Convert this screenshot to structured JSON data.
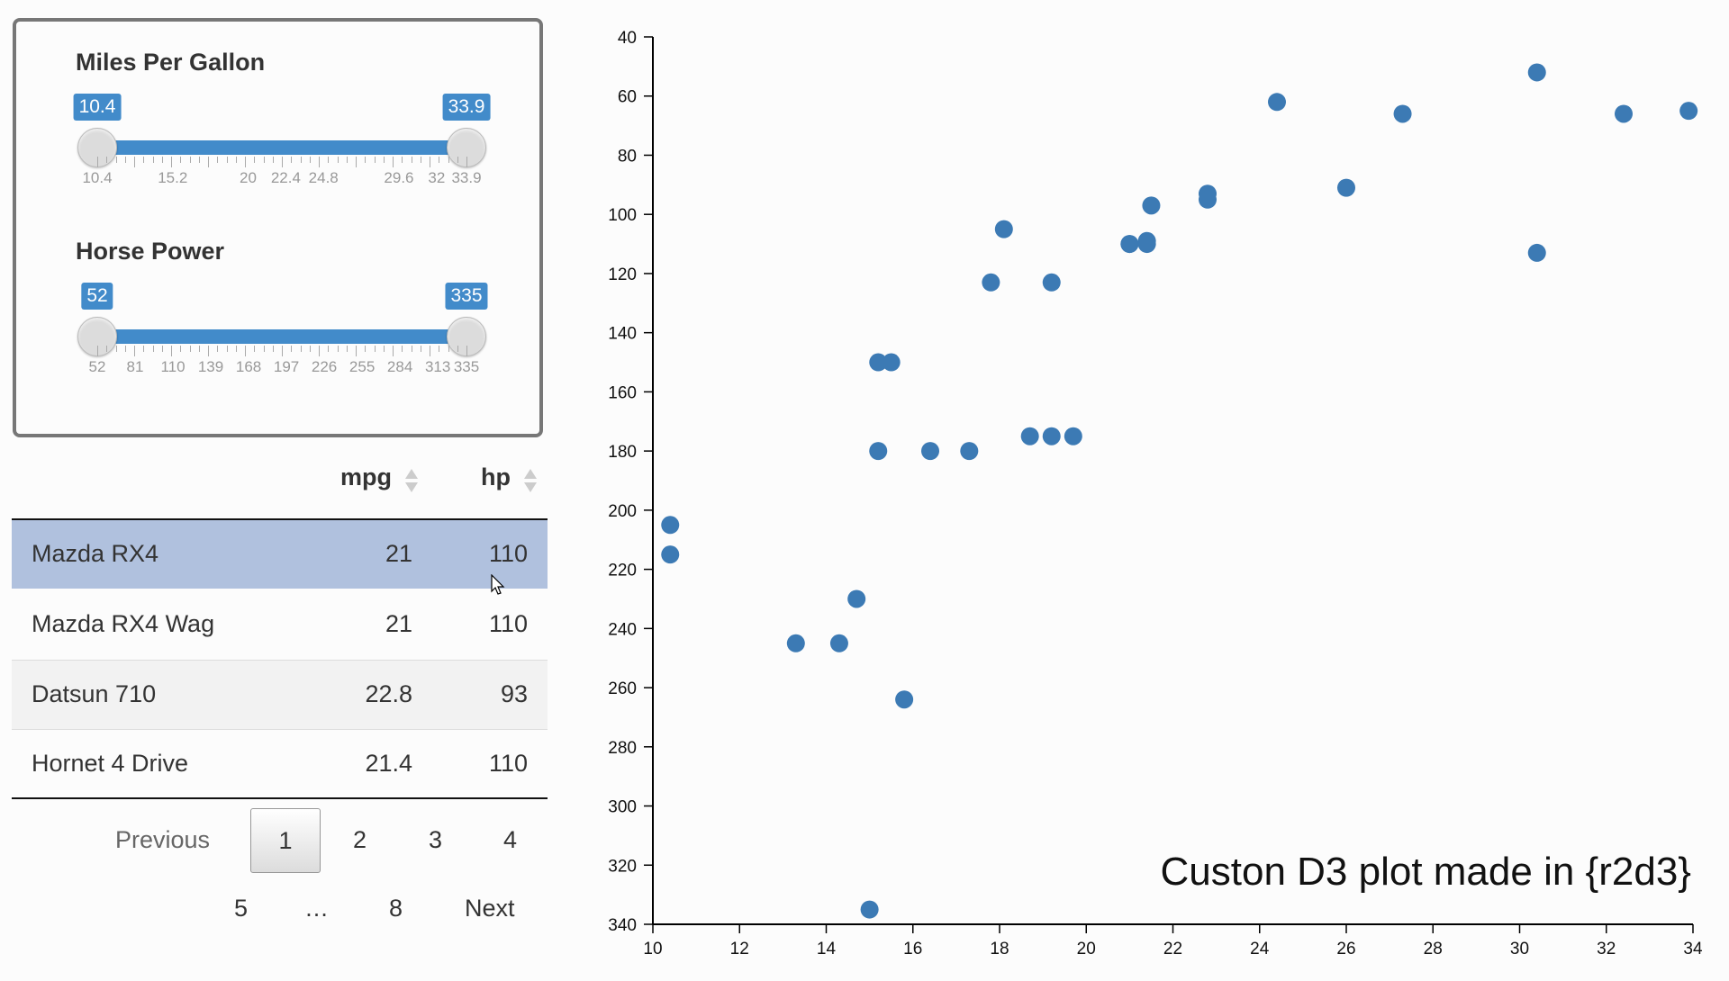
{
  "sliders": {
    "mpg": {
      "title": "Miles Per Gallon",
      "min_label": "10.4",
      "max_label": "33.9",
      "ticks": [
        "10.4",
        "15.2",
        "20",
        "22.4",
        "24.8",
        "29.6",
        "32",
        "33.9"
      ]
    },
    "hp": {
      "title": "Horse Power",
      "min_label": "52",
      "max_label": "335",
      "ticks": [
        "52",
        "81",
        "110",
        "139",
        "168",
        "197",
        "226",
        "255",
        "284",
        "313",
        "335"
      ]
    }
  },
  "table": {
    "columns": [
      "mpg",
      "hp"
    ],
    "rows": [
      {
        "name": "Mazda RX4",
        "mpg": "21",
        "hp": "110"
      },
      {
        "name": "Mazda RX4 Wag",
        "mpg": "21",
        "hp": "110"
      },
      {
        "name": "Datsun 710",
        "mpg": "22.8",
        "hp": "93"
      },
      {
        "name": "Hornet 4 Drive",
        "mpg": "21.4",
        "hp": "110"
      }
    ]
  },
  "pagination": {
    "previous": "Previous",
    "next": "Next",
    "pages": [
      "1",
      "2",
      "3",
      "4",
      "5",
      "…",
      "8"
    ],
    "current": "1"
  },
  "chart_data": {
    "type": "scatter",
    "title": "Custon D3 plot made in {r2d3}",
    "xlabel": "",
    "ylabel": "",
    "xlim": [
      10,
      34
    ],
    "ylim": [
      40,
      340
    ],
    "y_inverted": true,
    "x_ticks": [
      10,
      12,
      14,
      16,
      18,
      20,
      22,
      24,
      26,
      28,
      30,
      32,
      34
    ],
    "y_ticks": [
      40,
      60,
      80,
      100,
      120,
      140,
      160,
      180,
      200,
      220,
      240,
      260,
      280,
      300,
      320,
      340
    ],
    "color": "#3c7ab4",
    "points": [
      [
        21,
        110
      ],
      [
        21,
        110
      ],
      [
        22.8,
        93
      ],
      [
        21.4,
        110
      ],
      [
        18.7,
        175
      ],
      [
        18.1,
        105
      ],
      [
        14.3,
        245
      ],
      [
        24.4,
        62
      ],
      [
        22.8,
        95
      ],
      [
        19.2,
        123
      ],
      [
        17.8,
        123
      ],
      [
        16.4,
        180
      ],
      [
        17.3,
        180
      ],
      [
        15.2,
        180
      ],
      [
        10.4,
        205
      ],
      [
        10.4,
        215
      ],
      [
        14.7,
        230
      ],
      [
        32.4,
        66
      ],
      [
        30.4,
        52
      ],
      [
        33.9,
        65
      ],
      [
        21.5,
        97
      ],
      [
        15.5,
        150
      ],
      [
        15.2,
        150
      ],
      [
        13.3,
        245
      ],
      [
        19.2,
        175
      ],
      [
        27.3,
        66
      ],
      [
        26,
        91
      ],
      [
        30.4,
        113
      ],
      [
        15.8,
        264
      ],
      [
        19.7,
        175
      ],
      [
        15,
        335
      ],
      [
        21.4,
        109
      ]
    ]
  }
}
